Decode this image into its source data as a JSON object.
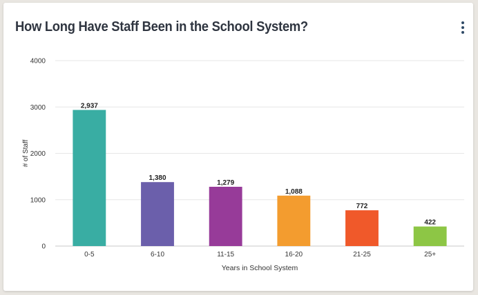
{
  "header": {
    "title": "How Long Have Staff Been in the School System?",
    "menu_icon": "vertical-ellipsis-icon"
  },
  "chart_data": {
    "type": "bar",
    "title": "How Long Have Staff Been in the School System?",
    "xlabel": "Years in School System",
    "ylabel": "# of Staff",
    "categories": [
      "0-5",
      "6-10",
      "11-15",
      "16-20",
      "21-25",
      "25+"
    ],
    "values": [
      2937,
      1380,
      1279,
      1088,
      772,
      422
    ],
    "data_labels": [
      "2,937",
      "1,380",
      "1,279",
      "1,088",
      "772",
      "422"
    ],
    "colors": [
      "#39ada3",
      "#6b5fab",
      "#973b99",
      "#f39c2f",
      "#f0592a",
      "#8dc645"
    ],
    "ylim": [
      0,
      4000
    ],
    "yticks": [
      0,
      1000,
      2000,
      3000,
      4000
    ],
    "grid": true,
    "legend": "none"
  }
}
